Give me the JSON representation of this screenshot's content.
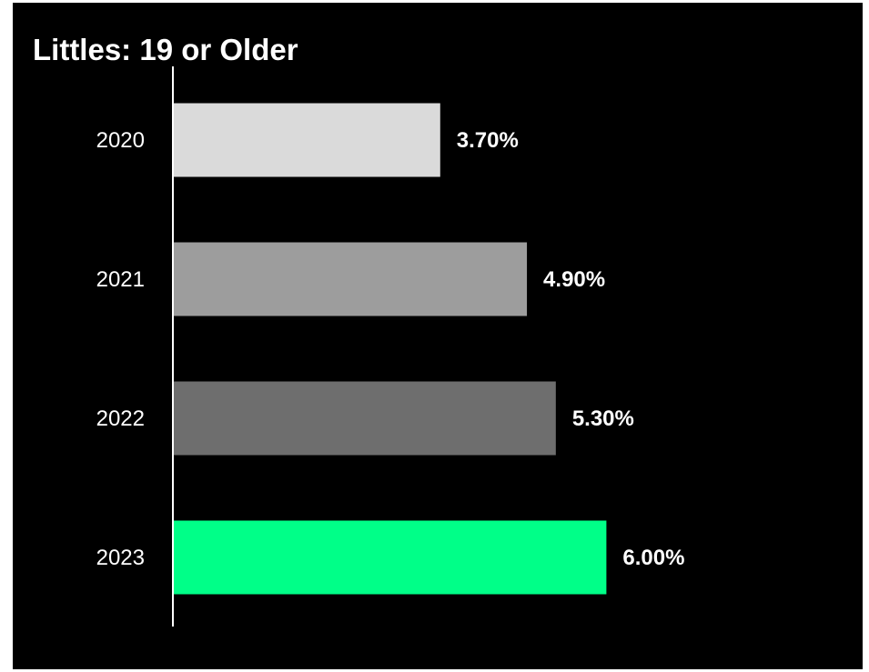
{
  "chart_data": {
    "type": "bar",
    "orientation": "horizontal",
    "title": "Littles: 19 or Older",
    "categories": [
      "2020",
      "2021",
      "2022",
      "2023"
    ],
    "values": [
      3.7,
      4.9,
      5.3,
      6.0
    ],
    "data_labels": [
      "3.70%",
      "4.90%",
      "5.30%",
      "6.00%"
    ],
    "bar_colors": [
      "#dadada",
      "#9d9d9d",
      "#6e6e6e",
      "#00ff88"
    ],
    "background": "#000000",
    "xlim": [
      0,
      7.3
    ],
    "grid": false,
    "legend": "none",
    "xlabel": "",
    "ylabel": ""
  }
}
